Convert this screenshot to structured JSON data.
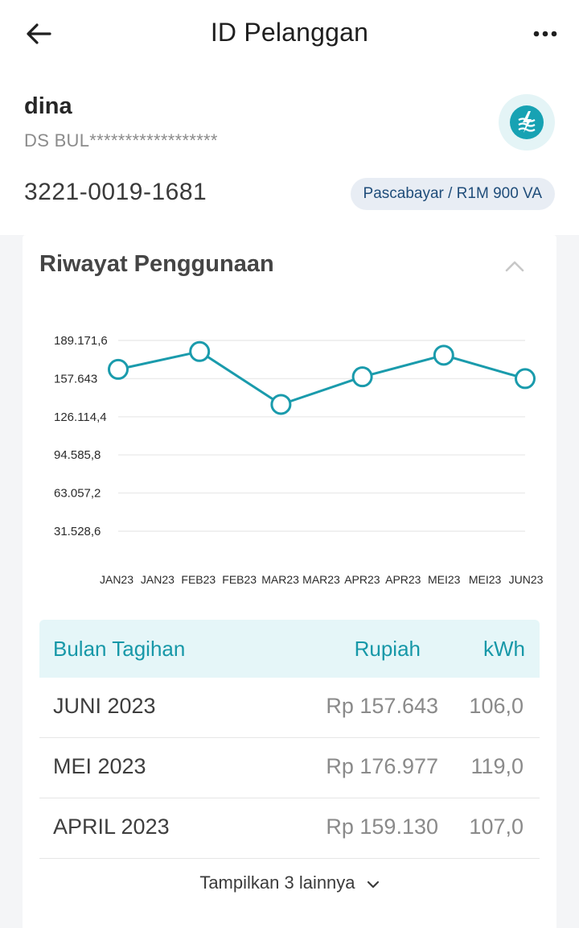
{
  "header": {
    "title": "ID Pelanggan",
    "back_icon": "arrow-left-icon",
    "more_icon": "more-horizontal-icon"
  },
  "customer": {
    "name": "dina",
    "subtitle": "DS BUL******************",
    "id": "3221-0019-1681",
    "tariff": "Pascabayar / R1M 900 VA",
    "logo_icon": "pln-logo-icon"
  },
  "usage": {
    "title": "Riwayat Penggunaan",
    "collapse_icon": "chevron-up-icon",
    "show_more_label": "Tampilkan 3 lainnya",
    "show_more_icon": "chevron-down-icon"
  },
  "chart_data": {
    "type": "line",
    "title": "",
    "xlabel": "",
    "ylabel": "",
    "x_tick_labels": [
      "JAN23",
      "JAN23",
      "FEB23",
      "FEB23",
      "MAR23",
      "MAR23",
      "APR23",
      "APR23",
      "MEI23",
      "MEI23",
      "JUN23"
    ],
    "y_tick_labels": [
      "31.528,6",
      "63.057,2",
      "94.585,8",
      "126.114,4",
      "157.643",
      "189.171,6"
    ],
    "y_ticks": [
      31528.6,
      63057.2,
      94585.8,
      126114.4,
      157643,
      189171.6
    ],
    "ylim": [
      0,
      189171.6
    ],
    "categories": [
      "JAN23",
      "FEB23",
      "MAR23",
      "APR23",
      "MEI23",
      "JUN23"
    ],
    "values": [
      165300,
      180000,
      136300,
      159130,
      176977,
      157643
    ],
    "line_color": "#1a9bac",
    "grid": true
  },
  "table": {
    "headers": {
      "month": "Bulan Tagihan",
      "rupiah": "Rupiah",
      "kwh": "kWh"
    },
    "rows": [
      {
        "month": "JUNI 2023",
        "rupiah": "Rp 157.643",
        "kwh": "106,0"
      },
      {
        "month": "MEI 2023",
        "rupiah": "Rp 176.977",
        "kwh": "119,0"
      },
      {
        "month": "APRIL 2023",
        "rupiah": "Rp 159.130",
        "kwh": "107,0"
      }
    ]
  },
  "colors": {
    "accent": "#1a9bac",
    "header_bg": "#e5f6f8",
    "badge_bg": "#e8edf4",
    "badge_text": "#1f4d7a"
  }
}
